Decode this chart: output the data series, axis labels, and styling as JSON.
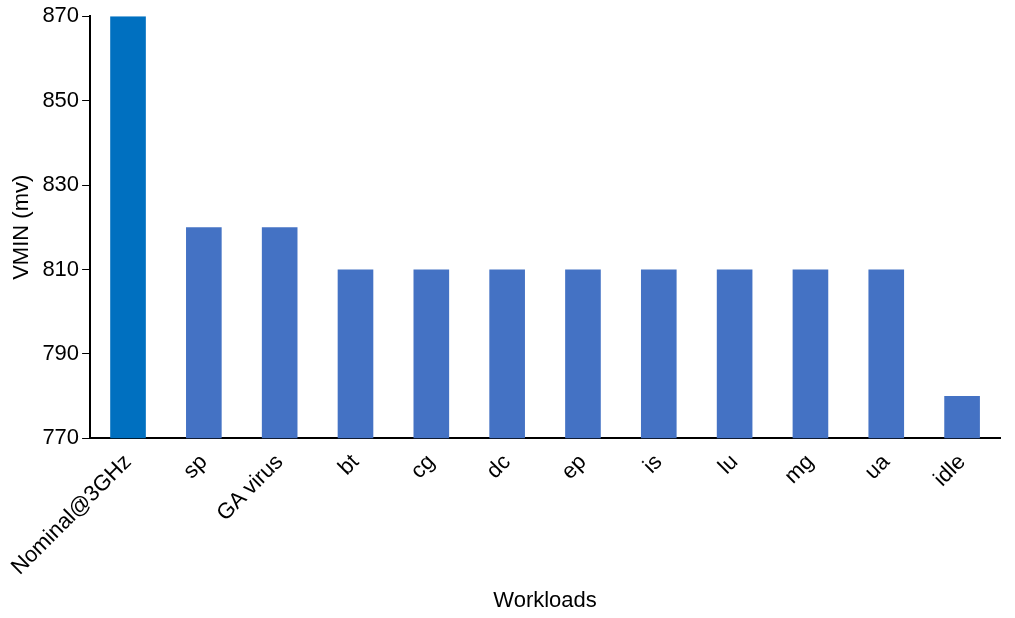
{
  "chart_data": {
    "type": "bar",
    "xlabel": "Workloads",
    "ylabel": "VMIN (mv)",
    "categories": [
      "Nominal@3GHz",
      "sp",
      "GA virus",
      "bt",
      "cg",
      "dc",
      "ep",
      "is",
      "lu",
      "mg",
      "ua",
      "idle"
    ],
    "values": [
      870,
      820,
      820,
      810,
      810,
      810,
      810,
      810,
      810,
      810,
      810,
      780
    ],
    "colors": [
      "#0070c0",
      "#4472c4",
      "#4472c4",
      "#4472c4",
      "#4472c4",
      "#4472c4",
      "#4472c4",
      "#4472c4",
      "#4472c4",
      "#4472c4",
      "#4472c4",
      "#4472c4"
    ],
    "ylim": [
      770,
      870
    ],
    "yticks": [
      770,
      790,
      810,
      830,
      850,
      870
    ],
    "grid": false,
    "legend": false
  }
}
